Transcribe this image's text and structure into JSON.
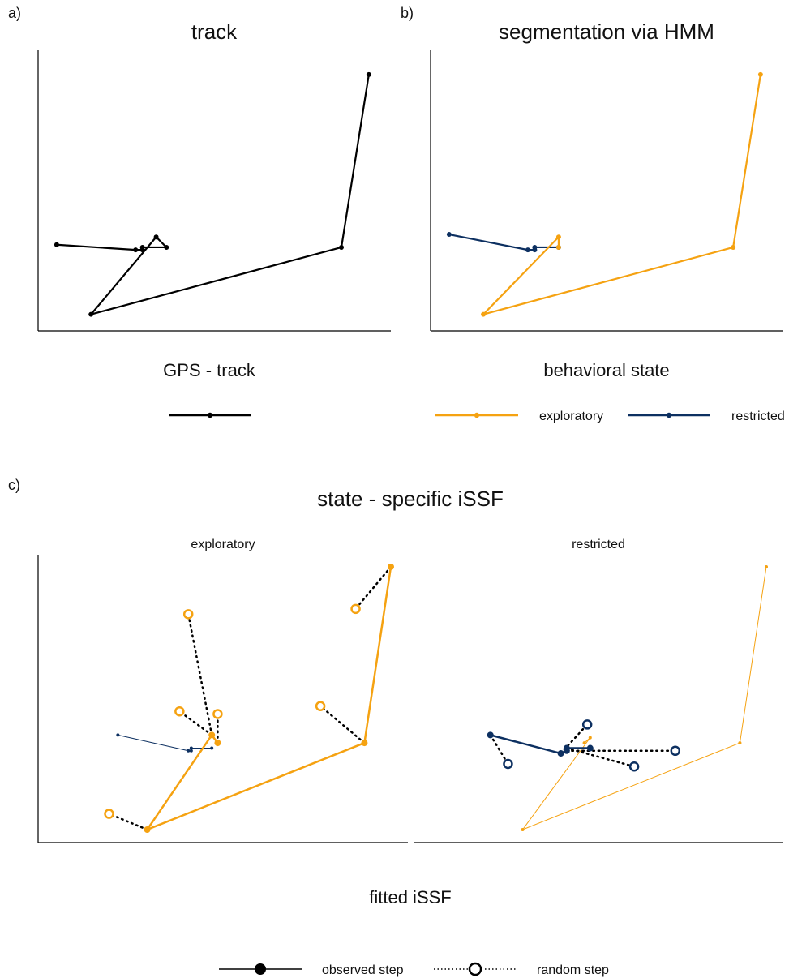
{
  "colors": {
    "track": "#000000",
    "exploratory": "#F5A211",
    "restricted": "#0D3061",
    "random_link": "#000000"
  },
  "panels": {
    "a": {
      "letter": "a)",
      "title": "track",
      "legend_title": "GPS - track"
    },
    "b": {
      "letter": "b)",
      "title": "segmentation via HMM",
      "legend_title": "behavioral state",
      "legend_items": [
        "exploratory",
        "restricted"
      ]
    },
    "c": {
      "letter": "c)",
      "title": "state - specific iSSF",
      "legend_title": "fitted iSSF",
      "facets": [
        "exploratory",
        "restricted"
      ],
      "legend_items": [
        "observed step",
        "random step"
      ]
    }
  },
  "chart_data": [
    {
      "type": "line",
      "panel": "a",
      "title": "track",
      "axes": "no ticks, no labels",
      "grid": false,
      "series": [
        {
          "name": "GPS - track",
          "points": [
            [
              4,
              29
            ],
            [
              27,
              27
            ],
            [
              29,
              27
            ],
            [
              29,
              28
            ],
            [
              36,
              28
            ],
            [
              33,
              32
            ],
            [
              14,
              2
            ],
            [
              87,
              28
            ],
            [
              95,
              95
            ]
          ]
        }
      ],
      "xlim": [
        0,
        100
      ],
      "ylim": [
        0,
        100
      ]
    },
    {
      "type": "line",
      "panel": "b",
      "title": "segmentation via HMM",
      "grid": false,
      "legend": "bottom",
      "segments": [
        {
          "state": "restricted",
          "points": [
            [
              4,
              33
            ],
            [
              27,
              27
            ],
            [
              29,
              27
            ],
            [
              29,
              28
            ],
            [
              36,
              28
            ]
          ]
        },
        {
          "state": "exploratory",
          "points": [
            [
              36,
              28
            ],
            [
              36,
              32
            ],
            [
              14,
              2
            ],
            [
              87,
              28
            ],
            [
              95,
              95
            ]
          ]
        }
      ],
      "xlim": [
        0,
        100
      ],
      "ylim": [
        0,
        100
      ]
    },
    {
      "type": "line",
      "panel": "c",
      "title": "state - specific iSSF",
      "legend": "bottom",
      "facets": [
        {
          "label": "exploratory",
          "observed_steps": {
            "exploratory": [
              [
                41,
                33
              ],
              [
                39,
                36
              ],
              [
                17,
                0
              ],
              [
                91,
                33
              ],
              [
                100,
                100
              ]
            ],
            "restricted": [
              [
                7,
                36
              ],
              [
                31,
                30
              ],
              [
                32,
                30
              ],
              [
                32,
                31
              ],
              [
                39,
                31
              ]
            ]
          },
          "random_steps": [
            {
              "from": [
                17,
                0
              ],
              "to": [
                4,
                6
              ]
            },
            {
              "from": [
                39,
                36
              ],
              "to": [
                28,
                45
              ]
            },
            {
              "from": [
                39,
                36
              ],
              "to": [
                31,
                82
              ]
            },
            {
              "from": [
                41,
                33
              ],
              "to": [
                41,
                44
              ]
            },
            {
              "from": [
                91,
                33
              ],
              "to": [
                76,
                47
              ]
            },
            {
              "from": [
                100,
                100
              ],
              "to": [
                88,
                84
              ]
            }
          ]
        },
        {
          "label": "restricted",
          "observed_steps": {
            "restricted": [
              [
                6,
                36
              ],
              [
                30,
                29
              ],
              [
                32,
                30
              ],
              [
                32,
                31
              ],
              [
                40,
                31
              ]
            ],
            "exploratory": [
              [
                38,
                33
              ],
              [
                40,
                35
              ],
              [
                17,
                0
              ],
              [
                91,
                33
              ],
              [
                100,
                100
              ]
            ]
          },
          "random_steps": [
            {
              "from": [
                6,
                36
              ],
              "to": [
                12,
                25
              ]
            },
            {
              "from": [
                30,
                29
              ],
              "to": [
                39,
                40
              ]
            },
            {
              "from": [
                32,
                30
              ],
              "to": [
                69,
                30
              ]
            },
            {
              "from": [
                32,
                31
              ],
              "to": [
                55,
                24
              ]
            }
          ]
        }
      ],
      "xlim": [
        0,
        100
      ],
      "ylim": [
        0,
        100
      ]
    }
  ]
}
